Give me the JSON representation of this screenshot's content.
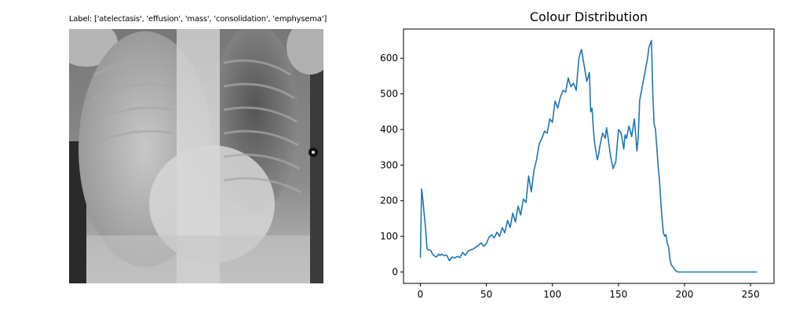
{
  "xray": {
    "label": "Label: ['atelectasis', 'effusion', 'mass', 'consolidation', 'emphysema']"
  },
  "chart_data": {
    "type": "line",
    "title": "Colour Distribution",
    "xlabel": "",
    "ylabel": "",
    "xlim": [
      -12.75,
      267.75
    ],
    "ylim": [
      -32,
      682
    ],
    "xticks": [
      0,
      50,
      100,
      150,
      200,
      250
    ],
    "yticks": [
      0,
      100,
      200,
      300,
      400,
      500,
      600
    ],
    "grid": false,
    "line_color": "#1f77b4",
    "series": [
      {
        "x": [
          0,
          1,
          2,
          3,
          4,
          5,
          6,
          7,
          8,
          9,
          10,
          12,
          14,
          15,
          16,
          18,
          20,
          22,
          24,
          26,
          28,
          30,
          32,
          34,
          36,
          38,
          40,
          42,
          44,
          46,
          48,
          50,
          52,
          54,
          56,
          58,
          60,
          62,
          64,
          66,
          68,
          70,
          72,
          74,
          76,
          78,
          80,
          82,
          84,
          86,
          88,
          90,
          92,
          94,
          96,
          98,
          100,
          102,
          104,
          106,
          108,
          110,
          112,
          114,
          116,
          118,
          120,
          122,
          124,
          126,
          128,
          129,
          130,
          131,
          132,
          134,
          135,
          136,
          138,
          140,
          141,
          142,
          144,
          146,
          148,
          150,
          152,
          154,
          155,
          156,
          158,
          160,
          162,
          164,
          165,
          166,
          168,
          170,
          172,
          173,
          174,
          175,
          176,
          177,
          178,
          179,
          180,
          181,
          182,
          183,
          184,
          185,
          186,
          187,
          188,
          189,
          190,
          191,
          192,
          193,
          194,
          195,
          196,
          197,
          198,
          200,
          210,
          220,
          230,
          240,
          250,
          255
        ],
        "y": [
          40,
          233,
          200,
          160,
          120,
          65,
          62,
          62,
          60,
          52,
          47,
          42,
          50,
          46,
          50,
          46,
          47,
          32,
          42,
          39,
          44,
          40,
          55,
          47,
          58,
          62,
          64,
          70,
          75,
          82,
          72,
          80,
          98,
          104,
          96,
          112,
          100,
          125,
          110,
          145,
          125,
          165,
          140,
          185,
          160,
          205,
          195,
          270,
          225,
          285,
          315,
          360,
          375,
          395,
          390,
          430,
          420,
          480,
          460,
          490,
          510,
          505,
          545,
          520,
          530,
          510,
          600,
          625,
          580,
          535,
          560,
          450,
          460,
          400,
          360,
          315,
          330,
          355,
          390,
          375,
          405,
          380,
          325,
          290,
          310,
          400,
          390,
          345,
          385,
          375,
          410,
          380,
          430,
          340,
          380,
          480,
          520,
          560,
          600,
          630,
          640,
          650,
          500,
          415,
          400,
          350,
          300,
          260,
          200,
          150,
          110,
          100,
          105,
          80,
          70,
          35,
          20,
          15,
          10,
          5,
          2,
          0,
          0,
          0,
          0,
          0,
          0,
          0,
          0,
          0,
          0,
          0
        ]
      }
    ]
  }
}
